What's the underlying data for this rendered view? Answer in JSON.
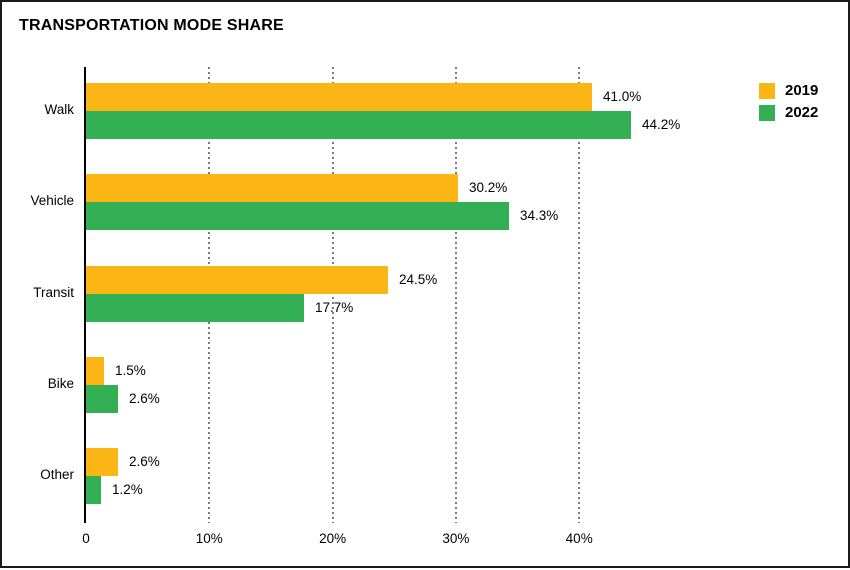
{
  "title": "TRANSPORTATION MODE SHARE",
  "legend": {
    "items": [
      {
        "label": "2019",
        "color": "#FBB616"
      },
      {
        "label": "2022",
        "color": "#34B054"
      }
    ]
  },
  "chart_data": {
    "type": "bar",
    "orientation": "horizontal",
    "title": "TRANSPORTATION MODE SHARE",
    "categories": [
      "Walk",
      "Vehicle",
      "Transit",
      "Bike",
      "Other"
    ],
    "series": [
      {
        "name": "2019",
        "color": "#FBB616",
        "values": [
          41.0,
          30.2,
          24.5,
          1.5,
          2.6
        ],
        "labels": [
          "41.0%",
          "30.2%",
          "24.5%",
          "1.5%",
          "2.6%"
        ]
      },
      {
        "name": "2022",
        "color": "#34B054",
        "values": [
          44.2,
          34.3,
          17.7,
          2.6,
          1.2
        ],
        "labels": [
          "44.2%",
          "34.3%",
          "17.7%",
          "2.6%",
          "1.2%"
        ]
      }
    ],
    "x_axis": {
      "ticks": [
        {
          "value": 0,
          "label": "0"
        },
        {
          "value": 10,
          "label": "10%"
        },
        {
          "value": 20,
          "label": "20%"
        },
        {
          "value": 30,
          "label": "30%"
        },
        {
          "value": 40,
          "label": "40%"
        }
      ],
      "min": 0,
      "max": 50
    },
    "grid": "dotted-vertical-on",
    "legend_position": "top-right",
    "value_labels": "outside-end"
  }
}
